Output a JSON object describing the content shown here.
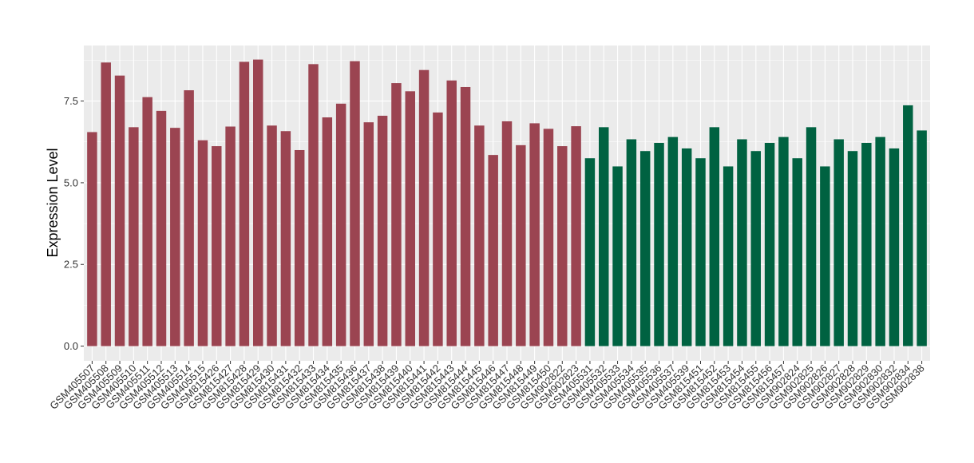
{
  "chart_data": {
    "type": "bar",
    "ylabel": "Expression Level",
    "xlabel": "",
    "ylim": [
      -0.45,
      9.2
    ],
    "yticks": [
      0.0,
      2.5,
      5.0,
      7.5
    ],
    "ytick_labels": [
      "0.0",
      "2.5",
      "5.0",
      "7.5"
    ],
    "grid": true,
    "panel_background": "#EBEBEB",
    "grid_color": "#FFFFFF",
    "group_colors": {
      "group1": "#9B4451",
      "group2": "#006241"
    },
    "categories": [
      "GSM405507",
      "GSM405508",
      "GSM405509",
      "GSM405510",
      "GSM405511",
      "GSM405512",
      "GSM405513",
      "GSM405514",
      "GSM405515",
      "GSM815426",
      "GSM815427",
      "GSM815428",
      "GSM815429",
      "GSM815430",
      "GSM815431",
      "GSM815432",
      "GSM815433",
      "GSM815434",
      "GSM815435",
      "GSM815436",
      "GSM815437",
      "GSM815438",
      "GSM815439",
      "GSM815440",
      "GSM815441",
      "GSM815442",
      "GSM815443",
      "GSM815444",
      "GSM815445",
      "GSM815446",
      "GSM815447",
      "GSM815448",
      "GSM815449",
      "GSM815450",
      "GSM902822",
      "GSM902823",
      "GSM405531",
      "GSM405532",
      "GSM405533",
      "GSM405534",
      "GSM405535",
      "GSM405536",
      "GSM405537",
      "GSM405539",
      "GSM815451",
      "GSM815452",
      "GSM815453",
      "GSM815454",
      "GSM815455",
      "GSM815456",
      "GSM815457",
      "GSM902824",
      "GSM902825",
      "GSM902826",
      "GSM902827",
      "GSM902828",
      "GSM902829",
      "GSM902830",
      "GSM902832",
      "GSM902834",
      "GSM902838"
    ],
    "values": [
      6.55,
      8.68,
      8.28,
      6.7,
      7.62,
      7.2,
      6.68,
      7.83,
      6.3,
      6.12,
      6.72,
      8.7,
      8.77,
      6.75,
      6.58,
      6.0,
      8.63,
      7.0,
      7.42,
      8.72,
      6.85,
      7.05,
      8.05,
      7.8,
      8.45,
      7.15,
      8.13,
      7.93,
      6.75,
      5.85,
      6.88,
      6.15,
      6.82,
      6.65,
      6.12,
      6.73,
      5.75,
      6.7,
      5.5,
      6.33,
      5.97,
      6.22,
      6.4,
      6.05,
      5.75,
      6.7,
      5.5,
      6.33,
      5.97,
      6.22,
      6.4,
      5.75,
      6.7,
      5.5,
      6.33,
      5.97,
      6.22,
      6.4,
      6.05,
      7.37,
      6.6
    ],
    "groups": [
      "group1",
      "group1",
      "group1",
      "group1",
      "group1",
      "group1",
      "group1",
      "group1",
      "group1",
      "group1",
      "group1",
      "group1",
      "group1",
      "group1",
      "group1",
      "group1",
      "group1",
      "group1",
      "group1",
      "group1",
      "group1",
      "group1",
      "group1",
      "group1",
      "group1",
      "group1",
      "group1",
      "group1",
      "group1",
      "group1",
      "group1",
      "group1",
      "group1",
      "group1",
      "group1",
      "group1",
      "group2",
      "group2",
      "group2",
      "group2",
      "group2",
      "group2",
      "group2",
      "group2",
      "group2",
      "group2",
      "group2",
      "group2",
      "group2",
      "group2",
      "group2",
      "group2",
      "group2",
      "group2",
      "group2",
      "group2",
      "group2",
      "group2",
      "group2",
      "group2",
      "group2"
    ]
  }
}
